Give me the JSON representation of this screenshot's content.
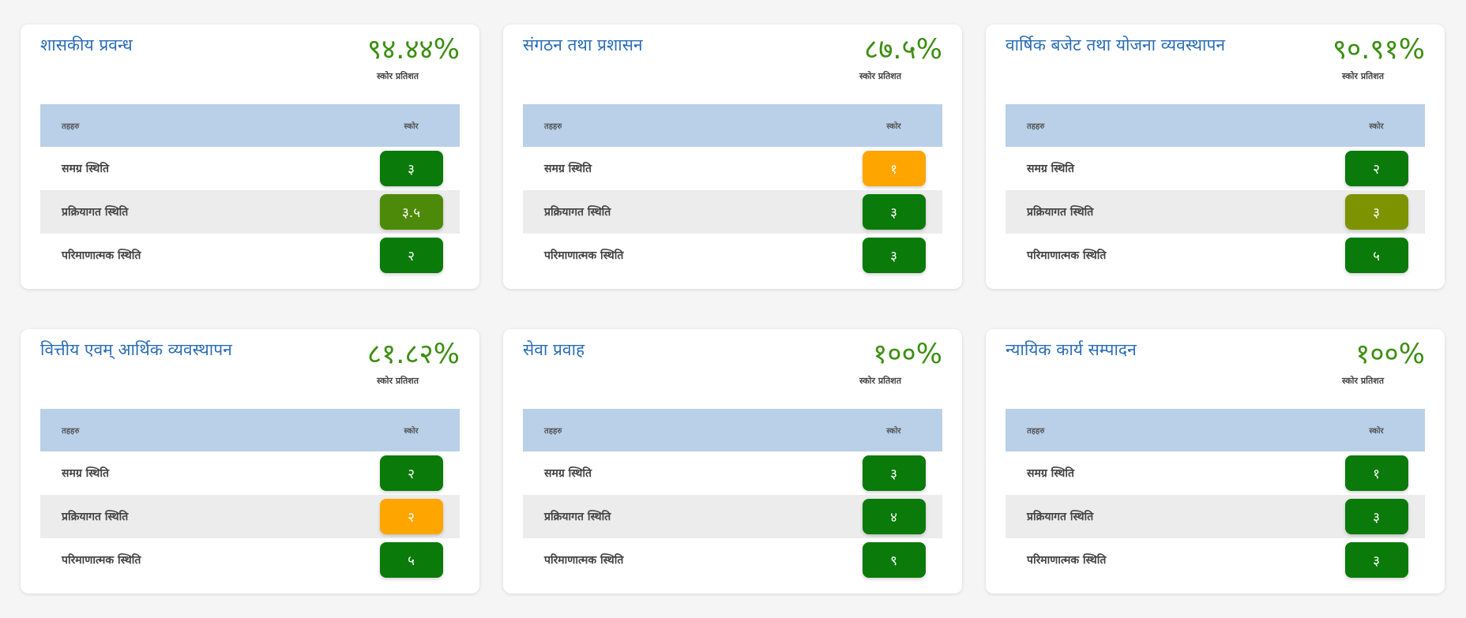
{
  "colors": {
    "title": "#2a6db5",
    "percent": "#3d8f12",
    "header_bg": "#b9d0e8",
    "alt_row_bg": "#ececec",
    "badge_green": "#0a7a0a",
    "badge_mid_green": "#4e8a0a",
    "badge_olive": "#7d9400",
    "badge_orange": "#ffa500"
  },
  "labels": {
    "score_caption": "स्कोर प्रतिशत",
    "col_name": "तहहरु",
    "col_score": "स्कोर",
    "row1": "समग्र स्थिति",
    "row2": "प्रक्रियागत स्थिति",
    "row3": "परिमाणात्मक स्थिति"
  },
  "cards": [
    {
      "title": "शासकीय प्रवन्ध",
      "percent": "९४.४४%",
      "scores": [
        "३",
        "३.५",
        "२"
      ],
      "badge_colors": [
        "#0a7a0a",
        "#4e8a0a",
        "#0a7a0a"
      ]
    },
    {
      "title": "संगठन तथा प्रशासन",
      "percent": "८७.५%",
      "scores": [
        "१",
        "३",
        "३"
      ],
      "badge_colors": [
        "#ffa500",
        "#0a7a0a",
        "#0a7a0a"
      ]
    },
    {
      "title": "वार्षिक बजेट तथा योजना व्यवस्थापन",
      "percent": "९०.९१%",
      "scores": [
        "२",
        "३",
        "५"
      ],
      "badge_colors": [
        "#0a7a0a",
        "#7d9400",
        "#0a7a0a"
      ]
    },
    {
      "title": "वित्तीय एवम् आर्थिक व्यवस्थापन",
      "percent": "८१.८२%",
      "scores": [
        "२",
        "२",
        "५"
      ],
      "badge_colors": [
        "#0a7a0a",
        "#ffa500",
        "#0a7a0a"
      ]
    },
    {
      "title": "सेवा प्रवाह",
      "percent": "१००%",
      "scores": [
        "३",
        "४",
        "९"
      ],
      "badge_colors": [
        "#0a7a0a",
        "#0a7a0a",
        "#0a7a0a"
      ]
    },
    {
      "title": "न्यायिक कार्य सम्पादन",
      "percent": "१००%",
      "scores": [
        "१",
        "३",
        "३"
      ],
      "badge_colors": [
        "#0a7a0a",
        "#0a7a0a",
        "#0a7a0a"
      ]
    }
  ]
}
